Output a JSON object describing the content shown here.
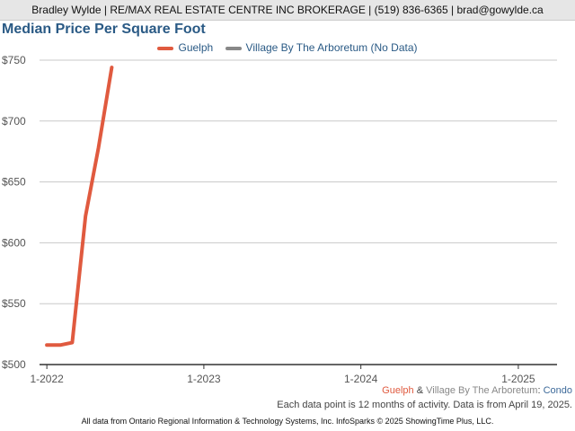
{
  "header": {
    "agent_line": "Bradley Wylde | RE/MAX REAL ESTATE CENTRE INC BROKERAGE | (519) 836-6365 | brad@gowylde.ca"
  },
  "colors": {
    "guelph": "#e05a3f",
    "village": "#888888",
    "condo": "#3d6a9a",
    "title": "#2a5a85",
    "grid": "#c8c8c8",
    "axis": "#333333"
  },
  "legend": {
    "guelph": "Guelph",
    "village": "Village By The Arboretum (No Data)"
  },
  "chart_data": {
    "type": "line",
    "title": "Median Price Per Square Foot",
    "xlabel": "",
    "ylabel": "",
    "ylim": [
      500,
      750
    ],
    "xlim": [
      "2021-12-15",
      "2025-04-01"
    ],
    "y_ticks": [
      500,
      550,
      600,
      650,
      700,
      750
    ],
    "y_tick_labels": [
      "$500",
      "$550",
      "$600",
      "$650",
      "$700",
      "$750"
    ],
    "x_ticks": [
      "2022-01-01",
      "2023-01-01",
      "2024-01-01",
      "2025-01-01"
    ],
    "x_tick_labels": [
      "1-2022",
      "1-2023",
      "1-2024",
      "1-2025"
    ],
    "grid": true,
    "legend_position": "top-center",
    "series": [
      {
        "name": "Guelph",
        "x": [
          "2022-01-01",
          "2022-02-01",
          "2022-03-01",
          "2022-04-01",
          "2022-05-01",
          "2022-06-01"
        ],
        "y": [
          516,
          516,
          518,
          622,
          678,
          744
        ]
      },
      {
        "name": "Village By The Arboretum (No Data)",
        "x": [],
        "y": []
      }
    ]
  },
  "footer": {
    "guelph": "Guelph",
    "amp": " & ",
    "village": "Village By The Arboretum",
    "colon": ": ",
    "condo": "Condo",
    "note": "Each data point is 12 months of activity. Data is from April 19, 2025.",
    "credit": "All data from Ontario Regional Information & Technology Systems, Inc. InfoSparks © 2025 ShowingTime Plus, LLC."
  }
}
